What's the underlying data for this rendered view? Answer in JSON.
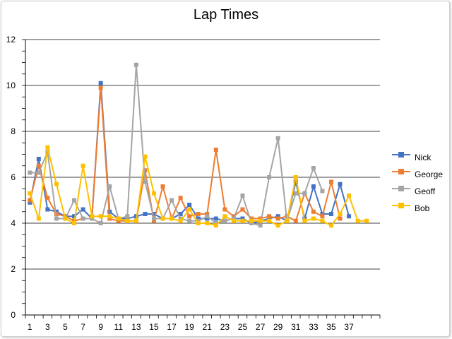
{
  "chart_data": {
    "type": "line",
    "title": "Lap Times",
    "xlabel": "",
    "ylabel": "",
    "ylim": [
      0,
      12
    ],
    "yticks": [
      "0",
      "2",
      "4",
      "6",
      "8",
      "10",
      "12"
    ],
    "x": [
      1,
      2,
      3,
      4,
      5,
      6,
      7,
      8,
      9,
      10,
      11,
      12,
      13,
      14,
      15,
      16,
      17,
      18,
      19,
      20,
      21,
      22,
      23,
      24,
      25,
      26,
      27,
      28,
      29,
      30,
      31,
      32,
      33,
      34,
      35,
      36,
      37,
      38,
      39,
      40
    ],
    "xtick_labels": [
      "1",
      "3",
      "5",
      "7",
      "9",
      "11",
      "13",
      "15",
      "17",
      "19",
      "21",
      "23",
      "25",
      "27",
      "29",
      "31",
      "33",
      "35",
      "37"
    ],
    "grid": true,
    "legend_position": "right",
    "series": [
      {
        "name": "Nick",
        "color": "#4472C4",
        "marker": "square",
        "values": [
          4.9,
          6.8,
          4.6,
          4.5,
          4.3,
          4.3,
          4.6,
          4.2,
          10.1,
          4.5,
          4.2,
          4.2,
          4.3,
          4.4,
          4.4,
          4.2,
          4.2,
          4.4,
          4.8,
          4.2,
          4.2,
          4.2,
          4.1,
          4.2,
          4.2,
          4.0,
          4.1,
          4.2,
          4.3,
          4.1,
          5.8,
          4.2,
          5.6,
          4.4,
          4.4,
          5.7,
          4.3,
          null,
          null,
          null
        ]
      },
      {
        "name": "George",
        "color": "#ED7D31",
        "marker": "square",
        "values": [
          5.0,
          6.5,
          5.1,
          4.4,
          4.3,
          4.1,
          4.2,
          4.2,
          9.9,
          4.2,
          4.1,
          4.1,
          4.1,
          6.3,
          4.1,
          5.6,
          4.2,
          5.1,
          4.3,
          4.4,
          4.4,
          7.2,
          4.6,
          4.3,
          4.6,
          4.2,
          4.2,
          4.3,
          4.2,
          4.3,
          4.1,
          5.3,
          4.5,
          4.3,
          5.8,
          4.2,
          null,
          null,
          null,
          null
        ]
      },
      {
        "name": "Geoff",
        "color": "#A5A5A5",
        "marker": "square",
        "values": [
          6.2,
          6.2,
          7.1,
          4.2,
          4.2,
          5.0,
          4.2,
          4.2,
          4.0,
          5.6,
          4.2,
          4.3,
          10.9,
          5.8,
          4.2,
          4.2,
          5.0,
          4.2,
          4.1,
          4.1,
          4.3,
          4.0,
          4.1,
          4.2,
          5.2,
          4.0,
          3.9,
          6.0,
          7.7,
          4.1,
          5.3,
          5.3,
          6.4,
          5.4,
          null,
          null,
          null,
          null,
          null,
          null
        ]
      },
      {
        "name": "Bob",
        "color": "#FFC000",
        "marker": "square",
        "values": [
          5.3,
          4.2,
          7.3,
          5.7,
          4.2,
          4.0,
          6.5,
          4.3,
          4.3,
          4.3,
          4.2,
          4.1,
          4.1,
          6.9,
          5.3,
          4.2,
          4.2,
          4.1,
          4.6,
          4.0,
          4.0,
          3.9,
          4.3,
          4.1,
          4.1,
          4.1,
          4.1,
          4.1,
          3.9,
          4.1,
          6.0,
          4.1,
          4.2,
          4.1,
          3.9,
          4.4,
          5.2,
          4.1,
          4.1,
          null
        ]
      }
    ]
  }
}
